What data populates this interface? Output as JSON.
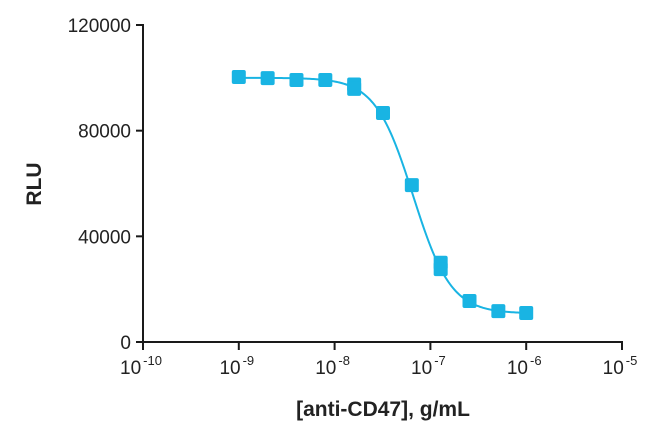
{
  "chart_data": {
    "type": "scatter",
    "title": "",
    "xlabel": "[anti-CD47], g/mL",
    "ylabel": "RLU",
    "xscale": "log",
    "xlim": [
      1e-10,
      1e-05
    ],
    "ylim": [
      0,
      120000
    ],
    "x_ticks": [
      {
        "base": "10",
        "exp": "-10",
        "value": 1e-10
      },
      {
        "base": "10",
        "exp": "-9",
        "value": 1e-09
      },
      {
        "base": "10",
        "exp": "-8",
        "value": 1e-08
      },
      {
        "base": "10",
        "exp": "-7",
        "value": 1e-07
      },
      {
        "base": "10",
        "exp": "-6",
        "value": 1e-06
      },
      {
        "base": "10",
        "exp": "-5",
        "value": 1e-05
      }
    ],
    "y_ticks": [
      {
        "label": "0",
        "value": 0
      },
      {
        "label": "40000",
        "value": 40000
      },
      {
        "label": "80000",
        "value": 80000
      },
      {
        "label": "120000",
        "value": 120000
      }
    ],
    "grid": false,
    "legend": "none",
    "series": [
      {
        "name": "anti-CD47",
        "color": "#19b4e3",
        "marker": "square",
        "fit": "4PL sigmoidal curve",
        "points": [
          {
            "x": 1e-09,
            "y": 100300
          },
          {
            "x": 2e-09,
            "y": 99900
          },
          {
            "x": 4e-09,
            "y": 99200
          },
          {
            "x": 8e-09,
            "y": 99200
          },
          {
            "x": 1.6e-08,
            "y": 97500
          },
          {
            "x": 1.6e-08,
            "y": 95800
          },
          {
            "x": 3.2e-08,
            "y": 86700
          },
          {
            "x": 6.4e-08,
            "y": 59400
          },
          {
            "x": 1.28e-07,
            "y": 30000
          },
          {
            "x": 1.28e-07,
            "y": 27600
          },
          {
            "x": 2.56e-07,
            "y": 15500
          },
          {
            "x": 5.12e-07,
            "y": 11700
          },
          {
            "x": 1e-06,
            "y": 11000
          }
        ],
        "curve_params": {
          "top": 100000,
          "bottom": 10800,
          "ec50": 6.6e-08,
          "hill": 2.2
        }
      }
    ]
  }
}
